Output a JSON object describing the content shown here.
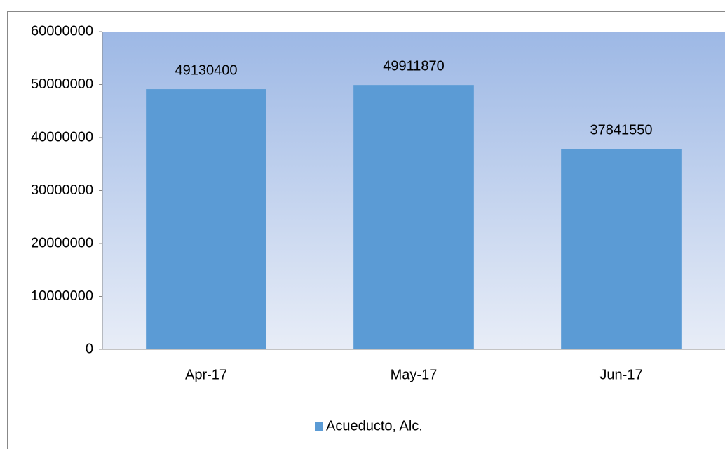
{
  "chart_data": {
    "type": "bar",
    "categories": [
      "Apr-17",
      "May-17",
      "Jun-17"
    ],
    "series": [
      {
        "name": "Acueducto, Alc.",
        "color": "#5b9bd5",
        "values": [
          49130400,
          49911870,
          37841550
        ]
      }
    ],
    "ylim": [
      0,
      60000000
    ],
    "yticks": [
      0,
      10000000,
      20000000,
      30000000,
      40000000,
      50000000,
      60000000
    ],
    "legend": "bottom"
  }
}
